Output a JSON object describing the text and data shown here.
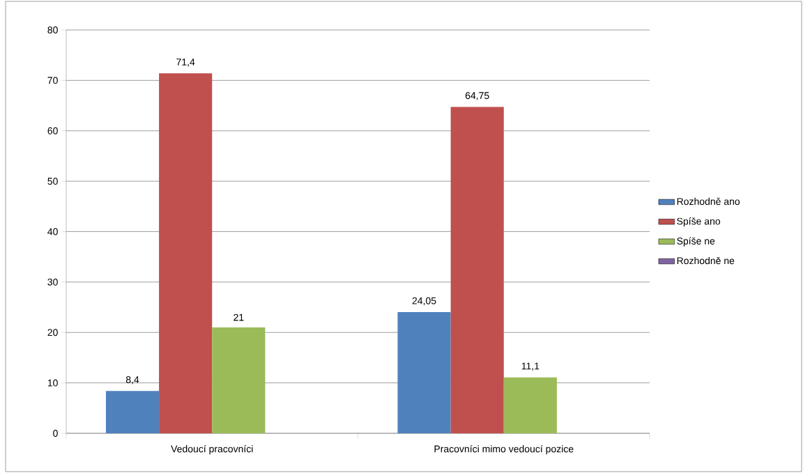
{
  "chart_data": {
    "type": "bar",
    "categories": [
      "Vedoucí pracovníci",
      "Pracovníci mimo vedoucí pozice"
    ],
    "series": [
      {
        "name": "Rozhodně ano",
        "color": "#4f81bd",
        "values": [
          8.4,
          24.05
        ],
        "value_labels": [
          "8,4",
          "24,05"
        ]
      },
      {
        "name": "Spíše ano",
        "color": "#c0504d",
        "values": [
          71.4,
          64.75
        ],
        "value_labels": [
          "71,4",
          "64,75"
        ]
      },
      {
        "name": "Spíše ne",
        "color": "#9bbb59",
        "values": [
          21,
          11.1
        ],
        "value_labels": [
          "21",
          "11,1"
        ]
      },
      {
        "name": "Rozhodně ne",
        "color": "#8064a2",
        "values": [
          null,
          null
        ],
        "value_labels": [
          null,
          null
        ]
      }
    ],
    "ylim": [
      0,
      80
    ],
    "yticks": [
      0,
      10,
      20,
      30,
      40,
      50,
      60,
      70,
      80
    ],
    "grid": "y",
    "legend": "right"
  }
}
